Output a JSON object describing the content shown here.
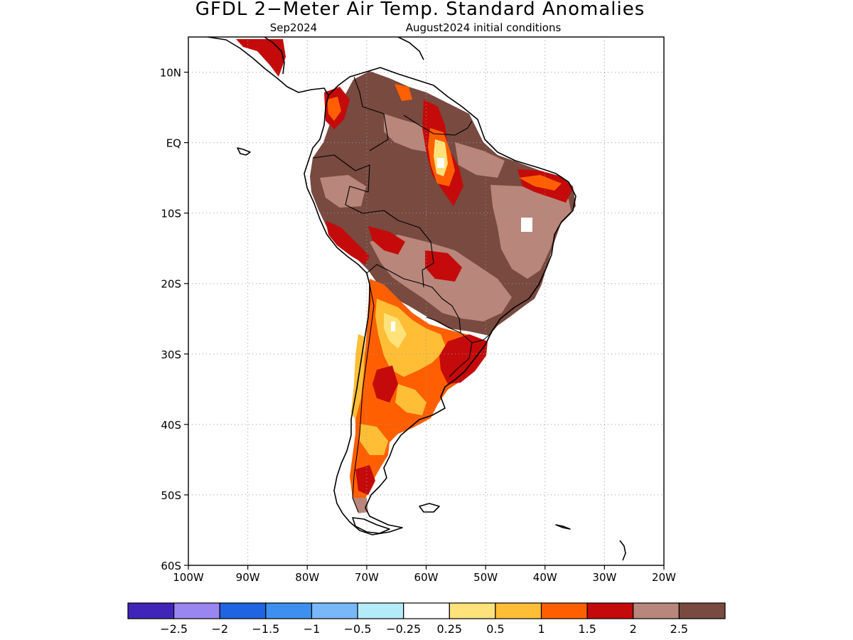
{
  "header": {
    "title": "GFDL 2−Meter Air Temp. Standard Anomalies",
    "valid_month": "Sep2024",
    "init_conditions": "August2024 initial conditions"
  },
  "map": {
    "region": "South America",
    "lon_range": [
      -100,
      -20
    ],
    "lat_range": [
      -60,
      15
    ],
    "lat_ticks": [
      {
        "value": 10,
        "label": "10N"
      },
      {
        "value": 0,
        "label": "EQ"
      },
      {
        "value": -10,
        "label": "10S"
      },
      {
        "value": -20,
        "label": "20S"
      },
      {
        "value": -30,
        "label": "30S"
      },
      {
        "value": -40,
        "label": "40S"
      },
      {
        "value": -50,
        "label": "50S"
      },
      {
        "value": -60,
        "label": "60S"
      }
    ],
    "lon_ticks": [
      {
        "value": -100,
        "label": "100W"
      },
      {
        "value": -90,
        "label": "90W"
      },
      {
        "value": -80,
        "label": "80W"
      },
      {
        "value": -70,
        "label": "70W"
      },
      {
        "value": -60,
        "label": "60W"
      },
      {
        "value": -50,
        "label": "50W"
      },
      {
        "value": -40,
        "label": "40W"
      },
      {
        "value": -30,
        "label": "30W"
      },
      {
        "value": -20,
        "label": "20W"
      }
    ],
    "grid": true
  },
  "colorbar": {
    "colors": [
      "#3f25b8",
      "#9a86f0",
      "#1f64e0",
      "#3d90ee",
      "#78b8f8",
      "#b3ecf8",
      "#ffffff",
      "#ffe27a",
      "#ffbe36",
      "#ff5f00",
      "#c40a0a",
      "#b8867a",
      "#784a40"
    ],
    "labels": [
      "−2.5",
      "−2",
      "−1.5",
      "−1",
      "−0.5",
      "−0.25",
      "0.25",
      "0.5",
      "1",
      "1.5",
      "2",
      "2.5"
    ]
  }
}
